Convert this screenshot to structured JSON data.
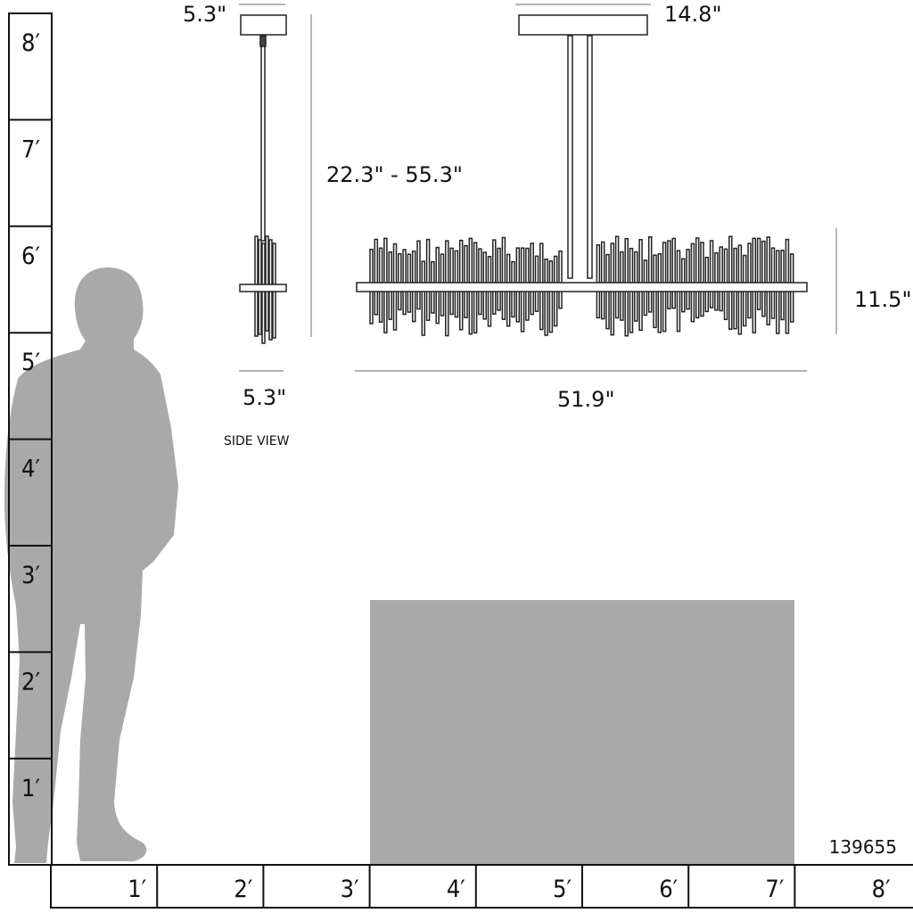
{
  "vertical_ruler": {
    "labels": [
      "8′",
      "7′",
      "6′",
      "5′",
      "4′",
      "3′",
      "2′",
      "1′"
    ]
  },
  "horizontal_ruler": {
    "labels": [
      "1′",
      "2′",
      "3′",
      "4′",
      "5′",
      "6′",
      "7′",
      "8′"
    ]
  },
  "side_view": {
    "canopy_width": "5.3\"",
    "body_width": "5.3\"",
    "height_range": "22.3\" - 55.3\"",
    "caption": "SIDE VIEW"
  },
  "front_view": {
    "canopy_width": "14.8\"",
    "width": "51.9\"",
    "body_height": "11.5\""
  },
  "model_number": "139655",
  "colors": {
    "silhouette": "#a9a9a9",
    "line": "#111111",
    "dimension_line": "#888888"
  }
}
